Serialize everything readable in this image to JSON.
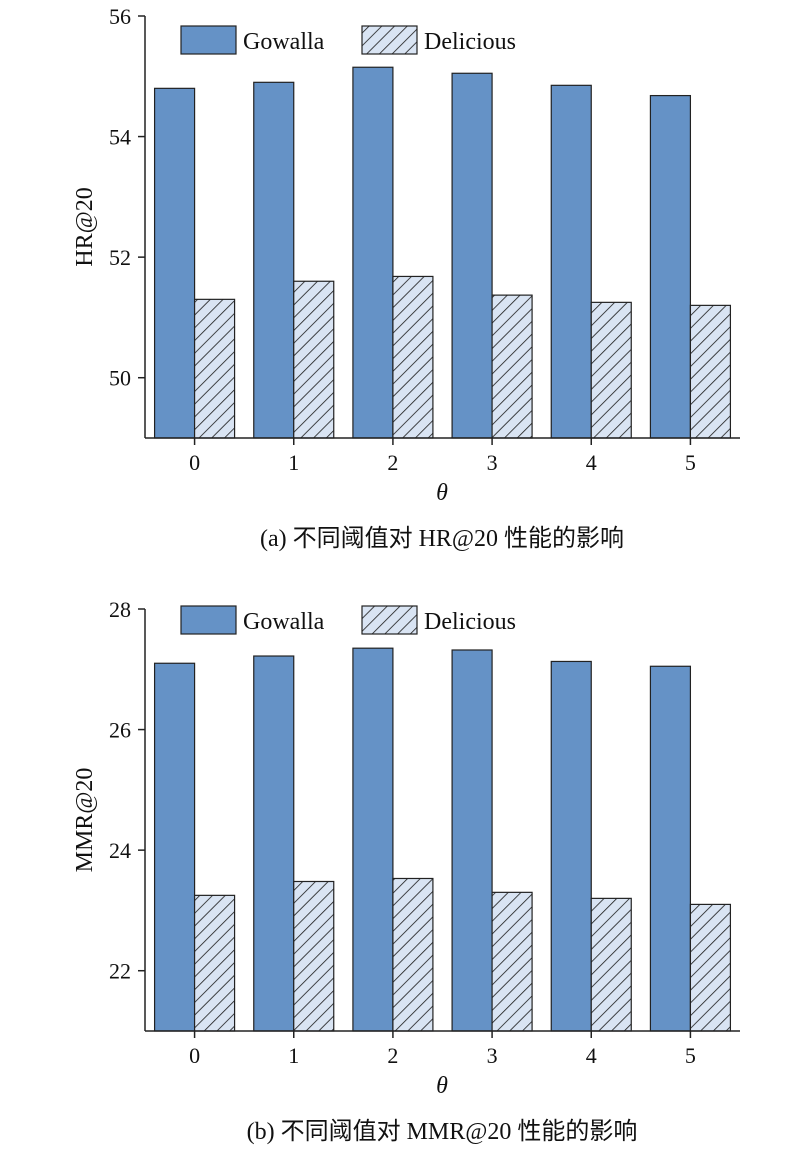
{
  "colors": {
    "gowalla": "#6592c6",
    "delicious_fill": "#d9e4f3",
    "hatch": "#1a1a1a",
    "axis": "#222222"
  },
  "chart_data": [
    {
      "type": "bar",
      "caption": "(a) 不同阈值对 HR@20 性能的影响",
      "xlabel": "θ",
      "ylabel": "HR@20",
      "categories": [
        "0",
        "1",
        "2",
        "3",
        "4",
        "5"
      ],
      "ylim": [
        49,
        56
      ],
      "yticks": [
        50,
        52,
        54,
        56
      ],
      "grid": false,
      "legend_position": "top",
      "series": [
        {
          "name": "Gowalla",
          "style": "solid",
          "values": [
            54.8,
            54.9,
            55.15,
            55.05,
            54.85,
            54.68
          ]
        },
        {
          "name": "Delicious",
          "style": "hatched",
          "values": [
            51.3,
            51.6,
            51.68,
            51.37,
            51.25,
            51.2
          ]
        }
      ]
    },
    {
      "type": "bar",
      "caption": "(b) 不同阈值对 MMR@20 性能的影响",
      "xlabel": "θ",
      "ylabel": "MMR@20",
      "categories": [
        "0",
        "1",
        "2",
        "3",
        "4",
        "5"
      ],
      "ylim": [
        21,
        28
      ],
      "yticks": [
        22,
        24,
        26,
        28
      ],
      "grid": false,
      "legend_position": "top",
      "series": [
        {
          "name": "Gowalla",
          "style": "solid",
          "values": [
            27.1,
            27.22,
            27.35,
            27.32,
            27.13,
            27.05
          ]
        },
        {
          "name": "Delicious",
          "style": "hatched",
          "values": [
            23.25,
            23.48,
            23.53,
            23.3,
            23.2,
            23.1
          ]
        }
      ]
    }
  ]
}
